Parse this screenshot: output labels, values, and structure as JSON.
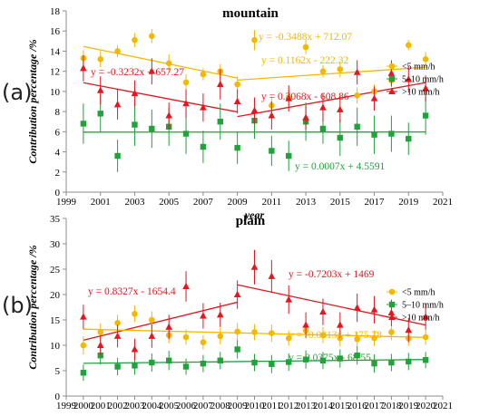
{
  "panel_labels": [
    "(a)",
    "(b)"
  ],
  "colors": {
    "lt5": "#f5b800",
    "mid": "#1fa33a",
    "gt10": "#e8141e"
  },
  "chart_data": [
    {
      "type": "scatter",
      "title": "mountain",
      "xlabel": "year",
      "ylabel": "Contribution percentage /%",
      "xlim": [
        1999,
        2021
      ],
      "ylim": [
        0,
        18
      ],
      "xticks": [
        1999,
        2001,
        2003,
        2005,
        2007,
        2009,
        2011,
        2013,
        2015,
        2017,
        2019,
        2021
      ],
      "yticks": [
        0,
        2,
        4,
        6,
        8,
        10,
        12,
        14,
        16,
        18
      ],
      "grid": false,
      "legend_position": "right",
      "x": [
        2000,
        2001,
        2002,
        2003,
        2004,
        2005,
        2006,
        2007,
        2008,
        2009,
        2010,
        2011,
        2012,
        2013,
        2014,
        2015,
        2016,
        2017,
        2018,
        2019,
        2020
      ],
      "series": [
        {
          "name": "<5 mm/h",
          "marker": "circle",
          "color_key": "lt5",
          "values": [
            13.3,
            13.2,
            14.0,
            15.1,
            15.5,
            12.8,
            10.9,
            11.7,
            12.0,
            10.7,
            15.1,
            8.6,
            9.4,
            14.4,
            12.0,
            12.2,
            9.6,
            10.0,
            11.1,
            14.6,
            13.2
          ],
          "errors": [
            0.8,
            0.8,
            0.6,
            0.7,
            0.7,
            0.9,
            0.8,
            0.6,
            0.7,
            0.8,
            1.0,
            0.8,
            0.8,
            0.7,
            0.6,
            0.8,
            0.8,
            0.7,
            0.7,
            0.5,
            0.7
          ]
        },
        {
          "name": "5–10 mm/h",
          "marker": "square",
          "color_key": "mid",
          "values": [
            6.8,
            7.8,
            3.6,
            6.7,
            6.3,
            6.5,
            5.8,
            4.5,
            7.0,
            4.4,
            7.1,
            4.1,
            3.6,
            7.0,
            6.3,
            5.4,
            6.5,
            5.7,
            5.8,
            5.3,
            7.6
          ],
          "errors": [
            2.0,
            1.9,
            1.6,
            2.1,
            1.9,
            1.9,
            2.0,
            1.6,
            1.8,
            1.6,
            1.8,
            1.5,
            1.5,
            1.9,
            1.5,
            1.8,
            1.9,
            1.9,
            1.8,
            1.6,
            1.9
          ]
        },
        {
          "name": ">10 mm/h",
          "marker": "triangle",
          "color_key": "gt10",
          "values": [
            12.3,
            10.1,
            8.7,
            9.8,
            12.0,
            7.6,
            8.8,
            8.4,
            10.7,
            9.0,
            8.1,
            7.6,
            9.3,
            7.4,
            8.4,
            8.2,
            11.9,
            9.3,
            11.8,
            11.2,
            10.3
          ],
          "errors": [
            1.3,
            1.4,
            1.5,
            1.3,
            1.3,
            1.3,
            1.4,
            1.4,
            1.5,
            1.2,
            1.3,
            1.4,
            1.3,
            1.2,
            1.4,
            1.3,
            1.2,
            1.2,
            1.3,
            1.3,
            1.3
          ]
        }
      ],
      "trendlines": [
        {
          "series": "<5 mm/h",
          "color_key": "lt5",
          "x_from": 2000,
          "x_to": 2009,
          "slope": -0.3488,
          "intercept": 712.07,
          "label": "y = -0.3488x + 712.07"
        },
        {
          "series": "<5 mm/h",
          "color_key": "lt5",
          "x_from": 2009,
          "x_to": 2020,
          "slope": 0.1162,
          "intercept": -222.32,
          "label": "y = 0.1162x - 222.32"
        },
        {
          "series": ">10 mm/h",
          "color_key": "gt10",
          "x_from": 2000,
          "x_to": 2009,
          "slope": -0.3232,
          "intercept": 657.27,
          "label": "y = -0.3232x + 657.27"
        },
        {
          "series": ">10 mm/h",
          "color_key": "gt10",
          "x_from": 2009,
          "x_to": 2020,
          "slope": 0.3068,
          "intercept": -608.86,
          "label": "y = 0.3068x - 608.86"
        },
        {
          "series": "5–10 mm/h",
          "color_key": "mid",
          "x_from": 2000,
          "x_to": 2020,
          "slope": 0.0007,
          "intercept": 4.5591,
          "label": "y = 0.0007x + 4.5591"
        }
      ]
    },
    {
      "type": "scatter",
      "title": "plain",
      "xlabel": "year",
      "ylabel": "Contribution percentage /%",
      "xlim": [
        1999,
        2021
      ],
      "ylim": [
        0,
        35
      ],
      "xticks": [
        1999,
        2000,
        2001,
        2002,
        2003,
        2004,
        2005,
        2006,
        2007,
        2008,
        2009,
        2010,
        2011,
        2012,
        2013,
        2014,
        2015,
        2016,
        2017,
        2018,
        2019,
        2020,
        2021
      ],
      "yticks": [
        0,
        5,
        10,
        15,
        20,
        25,
        30,
        35
      ],
      "grid": false,
      "legend_position": "right",
      "x": [
        2000,
        2001,
        2002,
        2003,
        2004,
        2005,
        2006,
        2007,
        2008,
        2009,
        2010,
        2011,
        2012,
        2013,
        2014,
        2015,
        2016,
        2017,
        2018,
        2019,
        2020
      ],
      "series": [
        {
          "name": "<5 mm/h",
          "marker": "circle",
          "color_key": "lt5",
          "values": [
            10.0,
            12.6,
            14.4,
            16.2,
            15.0,
            12.0,
            11.6,
            10.6,
            11.8,
            12.7,
            12.6,
            12.4,
            11.4,
            12.9,
            12.0,
            11.4,
            11.2,
            11.4,
            12.6,
            11.4,
            11.6
          ],
          "errors": [
            1.8,
            1.7,
            1.6,
            1.6,
            1.7,
            1.6,
            1.5,
            1.4,
            1.6,
            1.7,
            1.6,
            1.7,
            1.5,
            1.6,
            1.6,
            1.6,
            1.5,
            1.5,
            1.6,
            1.5,
            1.5
          ]
        },
        {
          "name": "5–10 mm/h",
          "marker": "square",
          "color_key": "mid",
          "values": [
            4.6,
            8.0,
            5.8,
            6.0,
            6.6,
            7.0,
            5.8,
            6.4,
            7.0,
            9.2,
            6.6,
            6.3,
            6.7,
            7.2,
            7.0,
            7.4,
            8.0,
            6.4,
            6.6,
            6.8,
            7.1
          ],
          "errors": [
            1.6,
            1.8,
            1.7,
            1.8,
            1.8,
            1.9,
            1.6,
            1.7,
            1.7,
            1.8,
            1.7,
            1.8,
            1.7,
            1.8,
            1.7,
            1.8,
            1.8,
            1.8,
            1.7,
            1.7,
            1.6
          ]
        },
        {
          "name": ">10 mm/h",
          "marker": "triangle",
          "color_key": "gt10",
          "values": [
            15.6,
            10.0,
            11.8,
            9.2,
            11.8,
            13.6,
            21.6,
            15.8,
            16.0,
            20.0,
            25.4,
            23.6,
            19.0,
            14.0,
            16.6,
            14.0,
            17.4,
            17.0,
            16.4,
            13.0,
            15.6
          ],
          "errors": [
            2.4,
            2.0,
            2.2,
            2.1,
            2.3,
            2.4,
            3.0,
            2.5,
            2.4,
            2.8,
            3.4,
            3.2,
            2.8,
            2.5,
            2.6,
            2.5,
            2.8,
            2.7,
            2.6,
            2.4,
            2.5
          ]
        }
      ],
      "trendlines": [
        {
          "series": ">10 mm/h",
          "color_key": "gt10",
          "x_from": 2000,
          "x_to": 2009,
          "slope": 0.8327,
          "intercept": -1654.4,
          "label": "y = 0.8327x - 1654.4"
        },
        {
          "series": ">10 mm/h",
          "color_key": "gt10",
          "x_from": 2009,
          "x_to": 2020,
          "slope": -0.7203,
          "intercept": 1469,
          "label": "y = -0.7203x + 1469"
        },
        {
          "series": "<5 mm/h",
          "color_key": "lt5",
          "x_from": 2000,
          "x_to": 2020,
          "slope": -0.0813,
          "intercept": 175.78,
          "label": "y = -0.0813x + 175.78"
        },
        {
          "series": "5–10 mm/h",
          "color_key": "mid",
          "x_from": 2000,
          "x_to": 2020,
          "slope": 0.0375,
          "intercept": -68.55,
          "label": "y = 0.0375x - 68.55"
        }
      ]
    }
  ]
}
